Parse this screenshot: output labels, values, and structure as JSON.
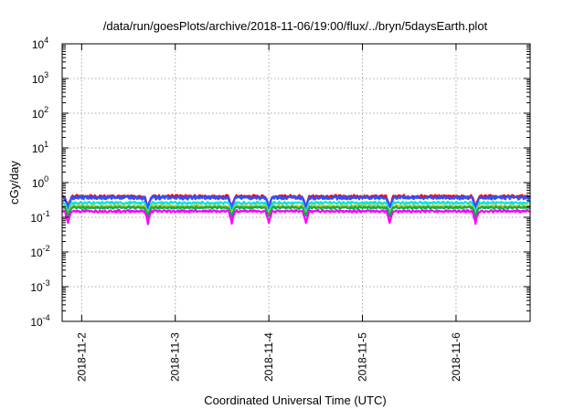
{
  "chart_data": {
    "type": "line",
    "title": "/data/run/goesPlots/archive/2018-11-06/19:00/flux/../bryn/5daysEarth.plot",
    "xlabel": "Coordinated Universal Time (UTC)",
    "ylabel": "cGy/day",
    "y_scale": "log",
    "ylim": [
      0.0001,
      10000
    ],
    "xlim": [
      "2018-11-01T19:00",
      "2018-11-06T19:00"
    ],
    "grid": true,
    "x_ticks": [
      {
        "t": "2018-11-02T00:00",
        "label": "2018-11-2"
      },
      {
        "t": "2018-11-03T00:00",
        "label": "2018-11-3"
      },
      {
        "t": "2018-11-04T00:00",
        "label": "2018-11-4"
      },
      {
        "t": "2018-11-05T00:00",
        "label": "2018-11-5"
      },
      {
        "t": "2018-11-06T00:00",
        "label": "2018-11-6"
      }
    ],
    "y_ticks": [
      {
        "v": 0.0001,
        "base": "10",
        "exp": "-4"
      },
      {
        "v": 0.001,
        "base": "10",
        "exp": "-3"
      },
      {
        "v": 0.01,
        "base": "10",
        "exp": "-2"
      },
      {
        "v": 0.1,
        "base": "10",
        "exp": "-1"
      },
      {
        "v": 1,
        "base": "10",
        "exp": "0"
      },
      {
        "v": 10,
        "base": "10",
        "exp": "1"
      },
      {
        "v": 100,
        "base": "10",
        "exp": "2"
      },
      {
        "v": 1000,
        "base": "10",
        "exp": "3"
      },
      {
        "v": 10000,
        "base": "10",
        "exp": "4"
      }
    ],
    "series": [
      {
        "color": "#ff0000",
        "base": 0.4,
        "dip_depth": 0.55,
        "noise": 0.08,
        "z": 1
      },
      {
        "color": "#3050ff",
        "base": 0.37,
        "dip_depth": 0.5,
        "noise": 0.1,
        "z": 2
      },
      {
        "color": "#00e5e5",
        "base": 0.26,
        "dip_depth": 0.5,
        "noise": 0.06,
        "z": 3
      },
      {
        "color": "#e0c000",
        "base": 0.21,
        "dip_depth": 0.45,
        "noise": 0.05,
        "z": 4
      },
      {
        "color": "#00b050",
        "base": 0.19,
        "dip_depth": 0.45,
        "noise": 0.05,
        "z": 5
      },
      {
        "color": "#ff00ff",
        "base": 0.15,
        "dip_depth": 0.55,
        "noise": 0.06,
        "z": 6
      }
    ],
    "dips": [
      "2018-11-01T20:30",
      "2018-11-02T17:00",
      "2018-11-03T14:30",
      "2018-11-04T00:00",
      "2018-11-04T09:30",
      "2018-11-05T07:00",
      "2018-11-06T05:00"
    ]
  }
}
